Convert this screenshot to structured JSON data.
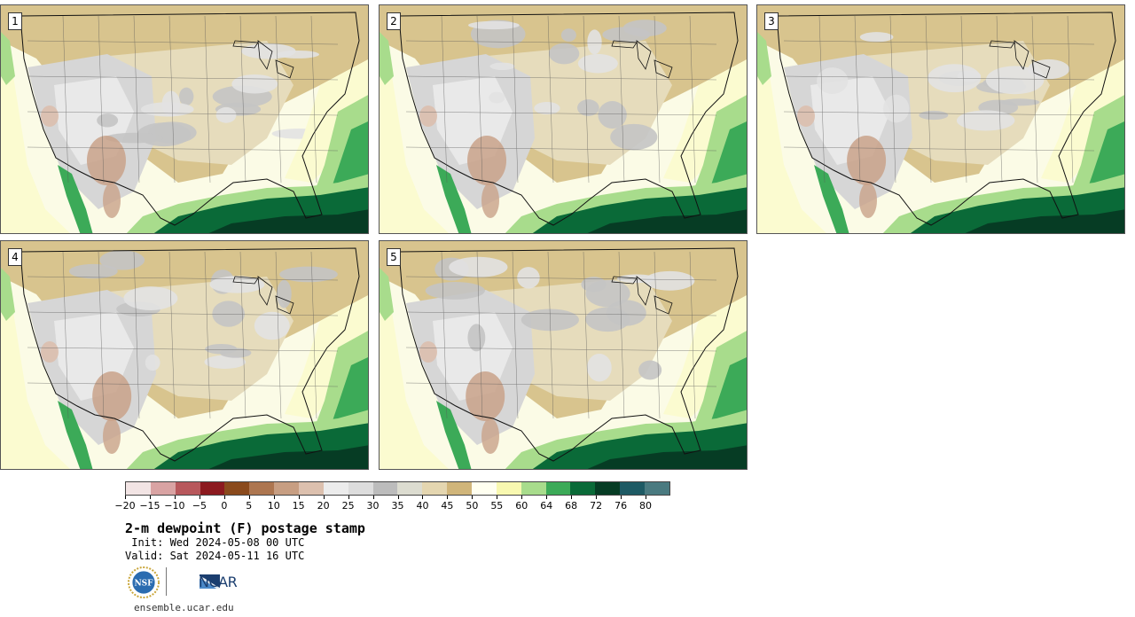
{
  "panels": [
    {
      "label": "1"
    },
    {
      "label": "2"
    },
    {
      "label": "3"
    },
    {
      "label": "4"
    },
    {
      "label": "5"
    }
  ],
  "colorbar": {
    "colors": [
      "#f2e4e4",
      "#d9a3a3",
      "#b8585c",
      "#8c1a1f",
      "#8a4a1c",
      "#ad7650",
      "#c79e82",
      "#dcc0ae",
      "#ececec",
      "#dddddd",
      "#bcbcbc",
      "#dcdcd0",
      "#e4d6b0",
      "#d0b57a",
      "#fffff0",
      "#f8f8b0",
      "#a8dc8c",
      "#3caa58",
      "#0a6a38",
      "#063c24",
      "#1e5a64",
      "#4a7a80"
    ],
    "tick_labels": [
      "−20",
      "−15",
      "−10",
      "−5",
      "0",
      "5",
      "10",
      "15",
      "20",
      "25",
      "30",
      "35",
      "40",
      "45",
      "50",
      "55",
      "60",
      "64",
      "68",
      "72",
      "76",
      "80"
    ]
  },
  "title": "2-m dewpoint (F) postage stamp",
  "init": " Init: Wed 2024-05-08 00 UTC",
  "valid": "Valid: Sat 2024-05-11 16 UTC",
  "logos": {
    "nsf_text": "NSF",
    "ncar_text": "NCAR"
  },
  "site": "ensemble.ucar.edu"
}
